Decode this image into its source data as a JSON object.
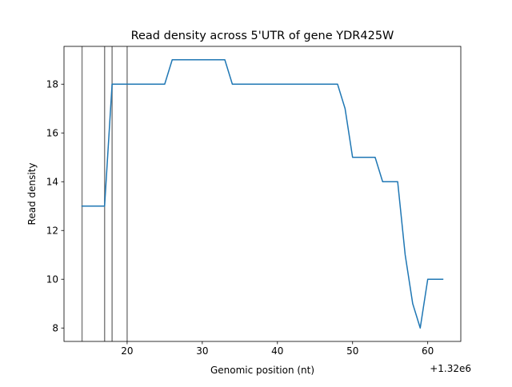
{
  "chart_data": {
    "type": "line",
    "title": "Read density across 5'UTR of gene YDR425W",
    "xlabel": "Genomic position (nt)",
    "ylabel": "Read density",
    "x_offset_label": "+1.32e6",
    "xlim": [
      11.6,
      64.4
    ],
    "ylim": [
      7.45,
      19.55
    ],
    "xticks": [
      20,
      30,
      40,
      50,
      60
    ],
    "xtick_labels": [
      "20",
      "30",
      "40",
      "50",
      "60"
    ],
    "yticks": [
      8,
      10,
      12,
      14,
      16,
      18
    ],
    "ytick_labels": [
      "8",
      "10",
      "12",
      "14",
      "16",
      "18"
    ],
    "grid": false,
    "series": [
      {
        "color": "#1f77b4",
        "x": [
          14,
          15,
          16,
          17,
          18,
          19,
          20,
          21,
          22,
          23,
          24,
          25,
          26,
          27,
          28,
          29,
          30,
          31,
          32,
          33,
          34,
          35,
          36,
          37,
          38,
          39,
          40,
          41,
          42,
          43,
          44,
          45,
          46,
          47,
          48,
          49,
          50,
          51,
          52,
          53,
          54,
          55,
          56,
          57,
          58,
          59,
          60,
          61,
          62
        ],
        "y": [
          13,
          13,
          13,
          13,
          18,
          18,
          18,
          18,
          18,
          18,
          18,
          18,
          19,
          19,
          19,
          19,
          19,
          19,
          19,
          19,
          18,
          18,
          18,
          18,
          18,
          18,
          18,
          18,
          18,
          18,
          18,
          18,
          18,
          18,
          18,
          17,
          15,
          15,
          15,
          15,
          14,
          14,
          14,
          11,
          9,
          8,
          10,
          10,
          10
        ]
      }
    ],
    "vlines": {
      "color": "#808080",
      "x": [
        14,
        17,
        18,
        20
      ]
    }
  }
}
